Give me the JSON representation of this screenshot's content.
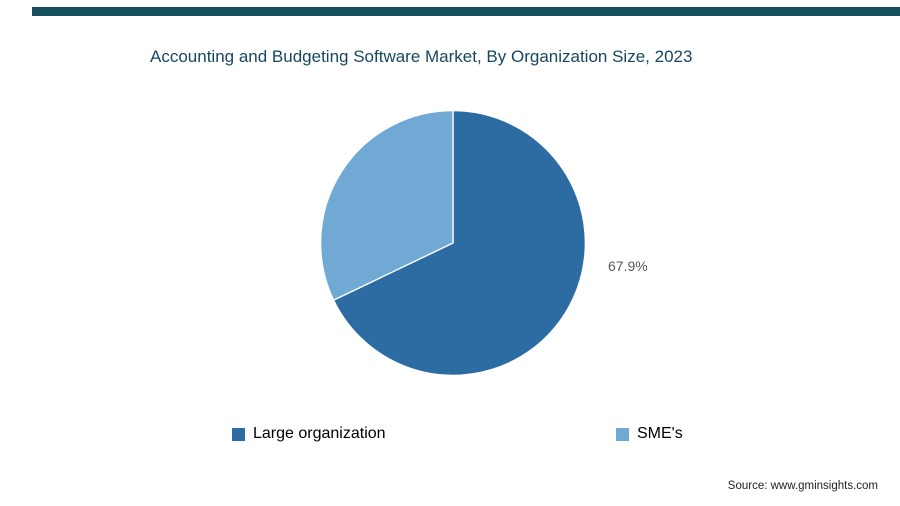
{
  "page": {
    "title": "Accounting and Budgeting Software Market, By Organization Size, 2023",
    "source_note": "Source: www.gminsights.com"
  },
  "chart_data": {
    "type": "pie",
    "title": "Accounting and Budgeting Software Market, By Organization Size, 2023",
    "start_angle_deg": 0,
    "direction": "clockwise",
    "legend_position": "bottom",
    "slices": [
      {
        "label": "Large organization",
        "value": 67.9,
        "data_label": "67.9%",
        "color": "#2d6ca3"
      },
      {
        "label": "SME's",
        "value": 32.1,
        "data_label": "",
        "color": "#70a9d4"
      }
    ]
  },
  "colors": {
    "accent_bar": "#16505e",
    "title_text": "#174760",
    "data_label_text": "#595959",
    "legend_text": "#000000"
  }
}
